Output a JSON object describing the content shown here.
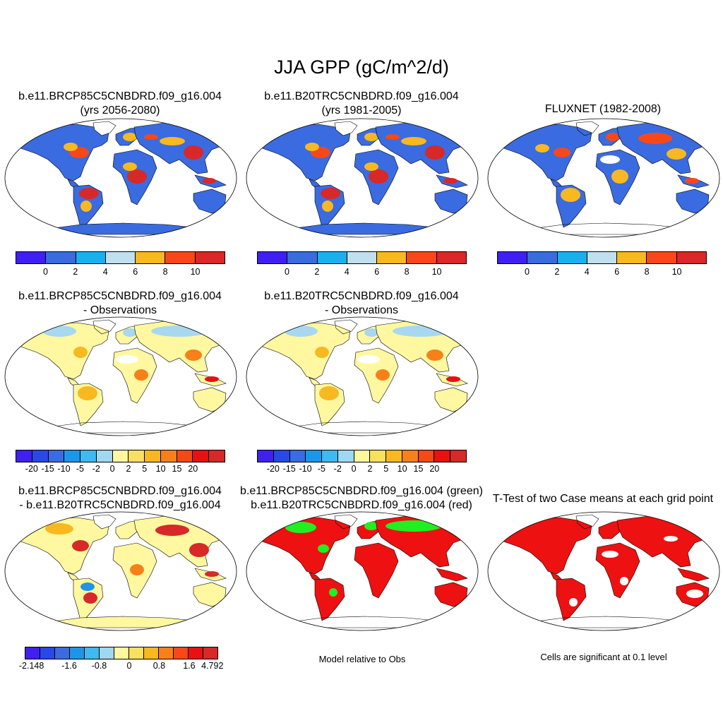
{
  "title": "JJA GPP (gC/m^2/d)",
  "panels": [
    {
      "line1": "b.e11.BRCP85C5CNBDRD.f09_g16.004",
      "line2": "(yrs 2056-2080)"
    },
    {
      "line1": "b.e11.B20TRC5CNBDRD.f09_g16.004",
      "line2": "(yrs 1981-2005)"
    },
    {
      "line1": "FLUXNET (1982-2008)",
      "line2": ""
    },
    {
      "line1": "b.e11.BRCP85C5CNBDRD.f09_g16.004",
      "line2": "- Observations"
    },
    {
      "line1": "b.e11.B20TRC5CNBDRD.f09_g16.004",
      "line2": "- Observations"
    },
    {
      "line1": "b.e11.BRCP85C5CNBDRD.f09_g16.004",
      "line2": "- b.e11.B20TRC5CNBDRD.f09_g16.004"
    },
    {
      "line1": "b.e11.BRCP85C5CNBDRD.f09_g16.004 (green)",
      "line2": "b.e11.B20TRC5CNBDRD.f09_g16.004 (red)"
    },
    {
      "line1": "T-Test of two Case means at each grid point",
      "line2": ""
    }
  ],
  "colorbars": {
    "abs": {
      "colors": [
        "#4020f0",
        "#3a6be0",
        "#1ab0f0",
        "#c0e0f0",
        "#f8b820",
        "#f84818",
        "#d82828"
      ],
      "labels": [
        "0",
        "2",
        "4",
        "6",
        "8",
        "10"
      ]
    },
    "diff": {
      "colors": [
        "#4020f0",
        "#2848e8",
        "#3a6be0",
        "#1e96e8",
        "#40b8f0",
        "#a0d8f0",
        "#fff8a0",
        "#f8e060",
        "#f8b820",
        "#f88018",
        "#f84818",
        "#e81010",
        "#d82828"
      ],
      "labels": [
        "-20",
        "-15",
        "-10",
        "-5",
        "-2",
        "0",
        "2",
        "5",
        "10",
        "15",
        "20"
      ]
    },
    "case": {
      "colors": [
        "#4020f0",
        "#2848e8",
        "#3a6be0",
        "#1e96e8",
        "#40b8f0",
        "#a0d8f0",
        "#fff8a0",
        "#f8e060",
        "#f8b820",
        "#f88018",
        "#f84818",
        "#e81010",
        "#d82828"
      ],
      "labels": [
        "-2.148",
        "-1.6",
        "-0.8",
        "0",
        "0.8",
        "1.6",
        "4.792"
      ]
    }
  },
  "notes": {
    "model_rel": "Model relative to Obs",
    "signif": "Cells are significant at 0.1 level"
  },
  "map_palette": {
    "ocean": "#ffffff",
    "low": "#3a6be0",
    "mid": "#f8b820",
    "high": "#d82828",
    "green": "#22ee22",
    "red": "#ee1111",
    "pale": "#fff8a0",
    "lightblue": "#a8d8f0"
  }
}
